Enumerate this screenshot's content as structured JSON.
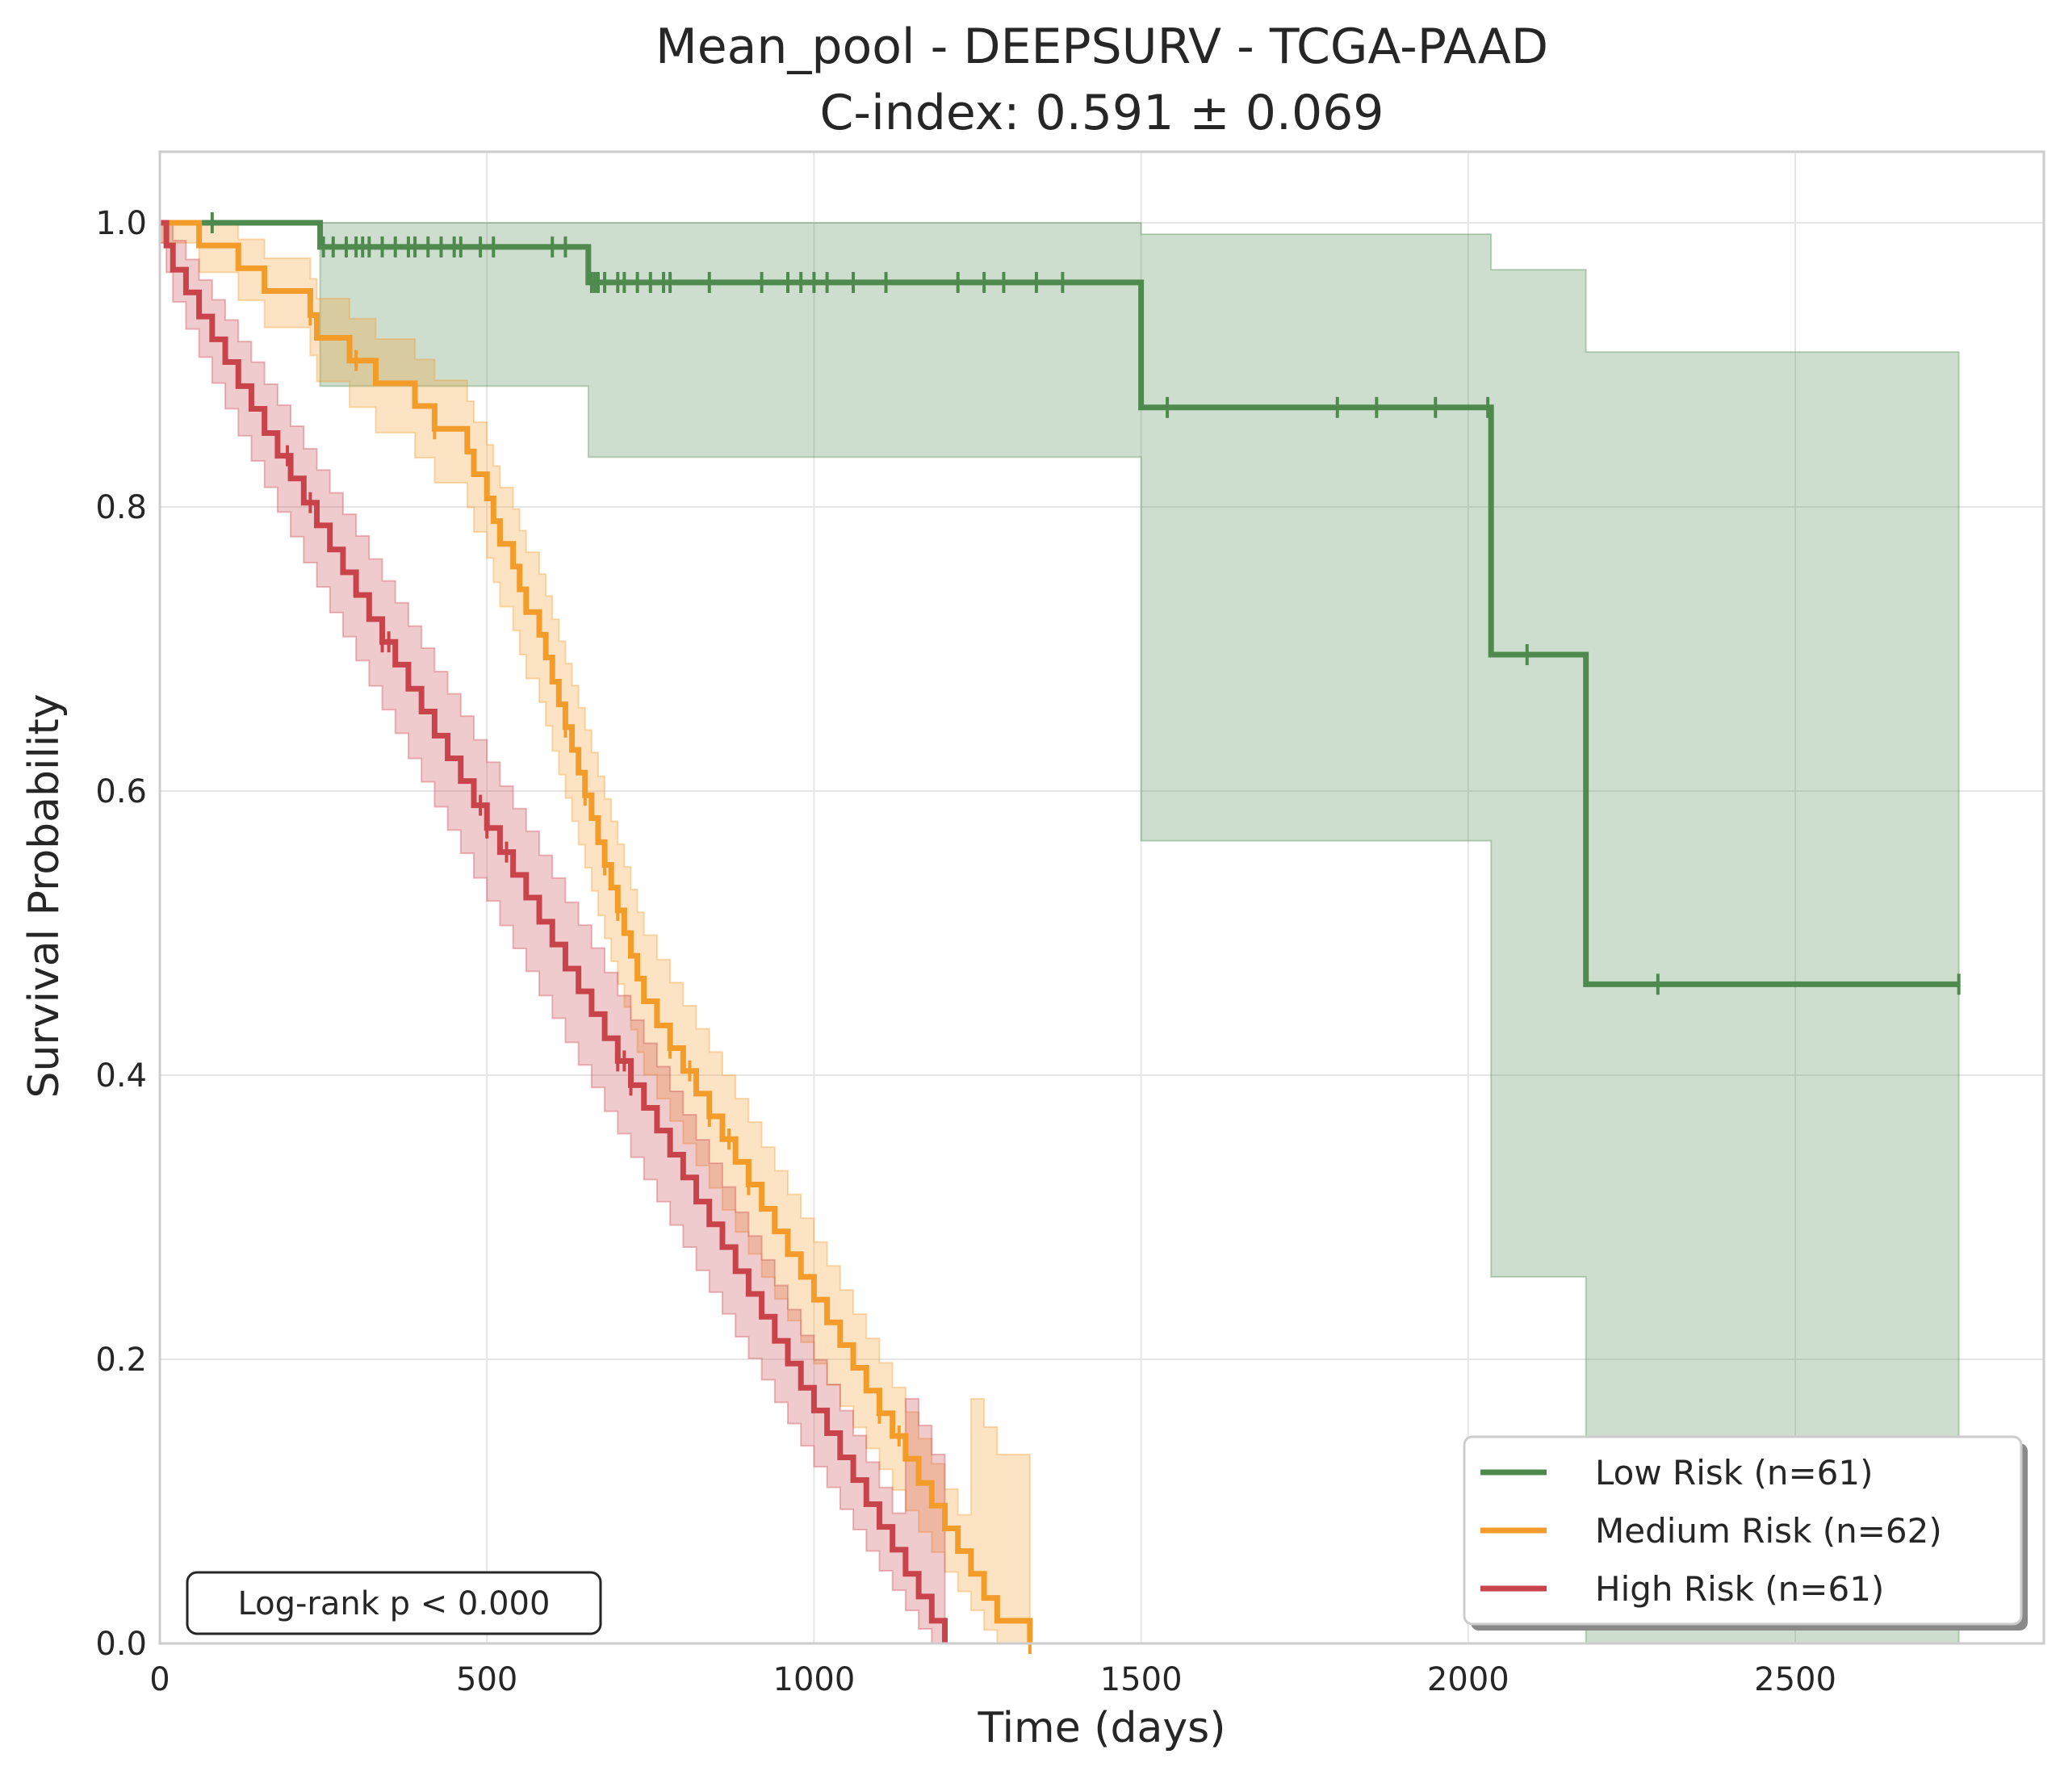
{
  "chart_data": {
    "type": "line",
    "subtype": "kaplan-meier",
    "title": "Mean_pool - DEEPSURV - TCGA-PAAD",
    "subtitle": "C-index: 0.591 ± 0.069",
    "xlabel": "Time (days)",
    "ylabel": "Survival Probability",
    "xlim": [
      0,
      2880
    ],
    "ylim": [
      0,
      1.05
    ],
    "xticks": [
      0,
      500,
      1000,
      1500,
      2000,
      2500
    ],
    "yticks": [
      0.0,
      0.2,
      0.4,
      0.6,
      0.8,
      1.0
    ],
    "xtick_labels": [
      "0",
      "500",
      "1000",
      "1500",
      "2000",
      "2500"
    ],
    "ytick_labels": [
      "0.0",
      "0.2",
      "0.4",
      "0.6",
      "0.8",
      "1.0"
    ],
    "grid": true,
    "legend_position": "bottom-right",
    "annotation": "Log-rank p < 0.000",
    "series": [
      {
        "name": "Low Risk (n=61)",
        "color": "#4e8a4e",
        "steps": [
          [
            0,
            1.0
          ],
          [
            245,
            0.983
          ],
          [
            655,
            0.958
          ],
          [
            1500,
            0.87
          ],
          [
            2035,
            0.696
          ],
          [
            2180,
            0.464
          ],
          [
            2750,
            0.464
          ]
        ],
        "ci_upper": [
          [
            0,
            1.0
          ],
          [
            245,
            1.0
          ],
          [
            655,
            1.0
          ],
          [
            1500,
            0.992
          ],
          [
            2035,
            0.967
          ],
          [
            2180,
            0.909
          ],
          [
            2750,
            0.798
          ]
        ],
        "ci_lower": [
          [
            0,
            1.0
          ],
          [
            245,
            0.885
          ],
          [
            655,
            0.835
          ],
          [
            1500,
            0.565
          ],
          [
            2035,
            0.258
          ],
          [
            2180,
            0.0
          ],
          [
            2750,
            0.0
          ]
        ],
        "censor_times": [
          80,
          250,
          265,
          285,
          300,
          310,
          320,
          340,
          360,
          380,
          390,
          410,
          430,
          450,
          460,
          490,
          510,
          600,
          620,
          660,
          665,
          670,
          680,
          700,
          710,
          730,
          750,
          770,
          780,
          840,
          920,
          960,
          980,
          1000,
          1020,
          1060,
          1110,
          1220,
          1260,
          1290,
          1340,
          1380,
          1540,
          1800,
          1860,
          1950,
          2030,
          2090,
          2290,
          2750
        ]
      },
      {
        "name": "Medium Risk (n=62)",
        "color": "#f39c2a",
        "steps": [
          [
            0,
            1.0
          ],
          [
            60,
            0.984
          ],
          [
            120,
            0.968
          ],
          [
            140,
            0.968
          ],
          [
            160,
            0.952
          ],
          [
            180,
            0.952
          ],
          [
            200,
            0.952
          ],
          [
            230,
            0.935
          ],
          [
            240,
            0.919
          ],
          [
            290,
            0.903
          ],
          [
            300,
            0.903
          ],
          [
            330,
            0.887
          ],
          [
            390,
            0.871
          ],
          [
            400,
            0.871
          ],
          [
            420,
            0.855
          ],
          [
            470,
            0.839
          ],
          [
            480,
            0.823
          ],
          [
            500,
            0.806
          ],
          [
            510,
            0.79
          ],
          [
            520,
            0.774
          ],
          [
            540,
            0.758
          ],
          [
            550,
            0.742
          ],
          [
            560,
            0.726
          ],
          [
            580,
            0.71
          ],
          [
            590,
            0.694
          ],
          [
            600,
            0.677
          ],
          [
            610,
            0.661
          ],
          [
            620,
            0.645
          ],
          [
            630,
            0.629
          ],
          [
            640,
            0.613
          ],
          [
            650,
            0.597
          ],
          [
            660,
            0.581
          ],
          [
            670,
            0.564
          ],
          [
            680,
            0.548
          ],
          [
            690,
            0.532
          ],
          [
            700,
            0.516
          ],
          [
            710,
            0.5
          ],
          [
            720,
            0.484
          ],
          [
            730,
            0.468
          ],
          [
            740,
            0.452
          ],
          [
            760,
            0.435
          ],
          [
            780,
            0.419
          ],
          [
            800,
            0.403
          ],
          [
            820,
            0.387
          ],
          [
            840,
            0.371
          ],
          [
            860,
            0.355
          ],
          [
            880,
            0.339
          ],
          [
            900,
            0.323
          ],
          [
            920,
            0.306
          ],
          [
            940,
            0.29
          ],
          [
            960,
            0.274
          ],
          [
            980,
            0.258
          ],
          [
            1000,
            0.242
          ],
          [
            1020,
            0.226
          ],
          [
            1040,
            0.21
          ],
          [
            1060,
            0.194
          ],
          [
            1080,
            0.178
          ],
          [
            1100,
            0.162
          ],
          [
            1120,
            0.146
          ],
          [
            1140,
            0.13
          ],
          [
            1160,
            0.113
          ],
          [
            1180,
            0.097
          ],
          [
            1200,
            0.081
          ],
          [
            1220,
            0.065
          ],
          [
            1240,
            0.049
          ],
          [
            1260,
            0.032
          ],
          [
            1280,
            0.016
          ],
          [
            1300,
            0.016
          ],
          [
            1330,
            0.0
          ]
        ],
        "censor_times": [
          230,
          300,
          420,
          620,
          650,
          680,
          700,
          780,
          810,
          840,
          870,
          900,
          1100,
          1130,
          1330
        ]
      },
      {
        "name": "High Risk (n=61)",
        "color": "#c9434a",
        "steps": [
          [
            0,
            1.0
          ],
          [
            10,
            0.984
          ],
          [
            20,
            0.967
          ],
          [
            40,
            0.951
          ],
          [
            60,
            0.934
          ],
          [
            80,
            0.918
          ],
          [
            100,
            0.902
          ],
          [
            120,
            0.885
          ],
          [
            140,
            0.869
          ],
          [
            160,
            0.852
          ],
          [
            180,
            0.836
          ],
          [
            200,
            0.82
          ],
          [
            220,
            0.803
          ],
          [
            240,
            0.787
          ],
          [
            260,
            0.77
          ],
          [
            280,
            0.754
          ],
          [
            300,
            0.738
          ],
          [
            320,
            0.721
          ],
          [
            340,
            0.705
          ],
          [
            360,
            0.689
          ],
          [
            380,
            0.672
          ],
          [
            400,
            0.656
          ],
          [
            420,
            0.639
          ],
          [
            440,
            0.623
          ],
          [
            460,
            0.607
          ],
          [
            480,
            0.59
          ],
          [
            500,
            0.574
          ],
          [
            520,
            0.557
          ],
          [
            540,
            0.541
          ],
          [
            560,
            0.525
          ],
          [
            580,
            0.508
          ],
          [
            600,
            0.492
          ],
          [
            620,
            0.475
          ],
          [
            640,
            0.459
          ],
          [
            660,
            0.443
          ],
          [
            680,
            0.426
          ],
          [
            700,
            0.41
          ],
          [
            720,
            0.393
          ],
          [
            740,
            0.377
          ],
          [
            760,
            0.361
          ],
          [
            780,
            0.344
          ],
          [
            800,
            0.328
          ],
          [
            820,
            0.311
          ],
          [
            840,
            0.295
          ],
          [
            860,
            0.279
          ],
          [
            880,
            0.262
          ],
          [
            900,
            0.246
          ],
          [
            920,
            0.23
          ],
          [
            940,
            0.213
          ],
          [
            960,
            0.197
          ],
          [
            980,
            0.18
          ],
          [
            1000,
            0.164
          ],
          [
            1020,
            0.148
          ],
          [
            1040,
            0.131
          ],
          [
            1060,
            0.115
          ],
          [
            1080,
            0.098
          ],
          [
            1100,
            0.082
          ],
          [
            1120,
            0.066
          ],
          [
            1140,
            0.049
          ],
          [
            1160,
            0.033
          ],
          [
            1180,
            0.016
          ],
          [
            1200,
            0.0
          ]
        ],
        "censor_times": [
          195,
          230,
          340,
          350,
          490,
          500,
          530,
          700,
          710,
          720
        ]
      }
    ]
  }
}
